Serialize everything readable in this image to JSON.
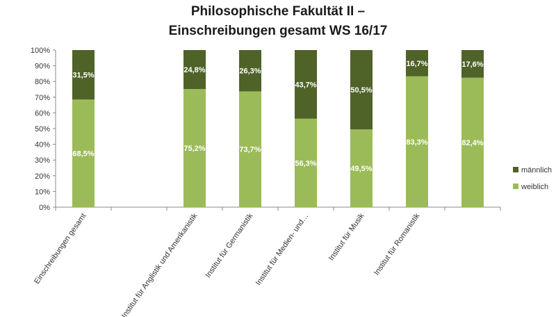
{
  "chart_data": {
    "type": "bar",
    "stacked": true,
    "title_lines": [
      "Philosophische Fakultät II –",
      "Einschreibungen gesamt WS 16/17"
    ],
    "categories": [
      "Einschreibungen gesamt",
      "",
      "Institut für Anglistik und Amerikanistik",
      "Institut für Germanistik",
      "Institut für Medien- und…",
      "Institut für Musik",
      "Institut für Romanistik",
      ""
    ],
    "series": [
      {
        "name": "weiblich",
        "color": "#9bbb59",
        "values": [
          68.5,
          null,
          75.2,
          73.7,
          56.3,
          49.5,
          83.3,
          82.4
        ],
        "labels": [
          "68,5%",
          "",
          "75,2%",
          "73,7%",
          "56,3%",
          "49,5%",
          "83,3%",
          "82,4%"
        ]
      },
      {
        "name": "männlich",
        "color": "#4f6228",
        "values": [
          31.5,
          null,
          24.8,
          26.3,
          43.7,
          50.5,
          16.7,
          17.6
        ],
        "labels": [
          "31,5%",
          "",
          "24,8%",
          "26,3%",
          "43,7%",
          "50,5%",
          "16,7%",
          "17,6%"
        ]
      }
    ],
    "y_ticks": [
      "0%",
      "10%",
      "20%",
      "30%",
      "40%",
      "50%",
      "60%",
      "70%",
      "80%",
      "90%",
      "100%"
    ],
    "ylim": [
      0,
      100
    ],
    "grid": false,
    "legend": [
      "männlich",
      "weiblich"
    ],
    "legend_position": "right"
  }
}
